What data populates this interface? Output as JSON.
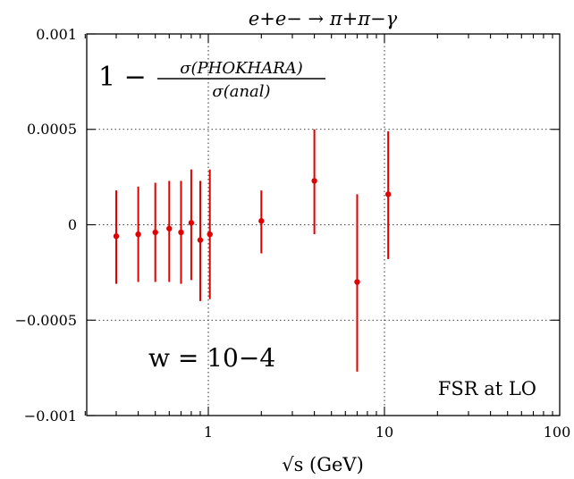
{
  "chart_data": {
    "type": "scatter",
    "title": "e+e− → π+π−γ",
    "xlabel": "√s (GeV)",
    "ylabel": "",
    "x_scale": "log",
    "xlim": [
      0.2,
      100
    ],
    "ylim": [
      -0.001,
      0.001
    ],
    "x_ticks": [
      {
        "value": 1,
        "label": "1"
      },
      {
        "value": 10,
        "label": "10"
      },
      {
        "value": 100,
        "label": "100"
      }
    ],
    "y_ticks": [
      {
        "value": 0.001,
        "label": "0.001"
      },
      {
        "value": 0.0005,
        "label": "0.0005"
      },
      {
        "value": 0,
        "label": "0"
      },
      {
        "value": -0.0005,
        "label": "−0.0005"
      },
      {
        "value": -0.001,
        "label": "−0.001"
      }
    ],
    "grid": true,
    "series": [
      {
        "color": "#e00000",
        "points": [
          {
            "x": 0.3,
            "y": -6e-05,
            "ylo": -0.00031,
            "yhi": 0.00018
          },
          {
            "x": 0.4,
            "y": -5e-05,
            "ylo": -0.0003,
            "yhi": 0.0002
          },
          {
            "x": 0.5,
            "y": -4e-05,
            "ylo": -0.0003,
            "yhi": 0.00022
          },
          {
            "x": 0.6,
            "y": -2e-05,
            "ylo": -0.0003,
            "yhi": 0.00023
          },
          {
            "x": 0.7,
            "y": -4e-05,
            "ylo": -0.00031,
            "yhi": 0.00023
          },
          {
            "x": 0.8,
            "y": 1e-05,
            "ylo": -0.00029,
            "yhi": 0.00029
          },
          {
            "x": 0.9,
            "y": -8e-05,
            "ylo": -0.0004,
            "yhi": 0.00023
          },
          {
            "x": 1.02,
            "y": -5e-05,
            "ylo": -0.00039,
            "yhi": 0.00029
          },
          {
            "x": 2.0,
            "y": 2e-05,
            "ylo": -0.00015,
            "yhi": 0.00018
          },
          {
            "x": 4.0,
            "y": 0.00023,
            "ylo": -5e-05,
            "yhi": 0.0005
          },
          {
            "x": 7.0,
            "y": -0.0003,
            "ylo": -0.00077,
            "yhi": 0.00016
          },
          {
            "x": 10.5,
            "y": 0.00016,
            "ylo": -0.00018,
            "yhi": 0.00049
          }
        ]
      }
    ],
    "annotations": {
      "formula_lead": "1 −",
      "formula_numerator": "σ(PHOKHARA)",
      "formula_denominator": "σ(anal)",
      "w_label": "w = 10−4",
      "fsr_label": "FSR at LO"
    }
  }
}
